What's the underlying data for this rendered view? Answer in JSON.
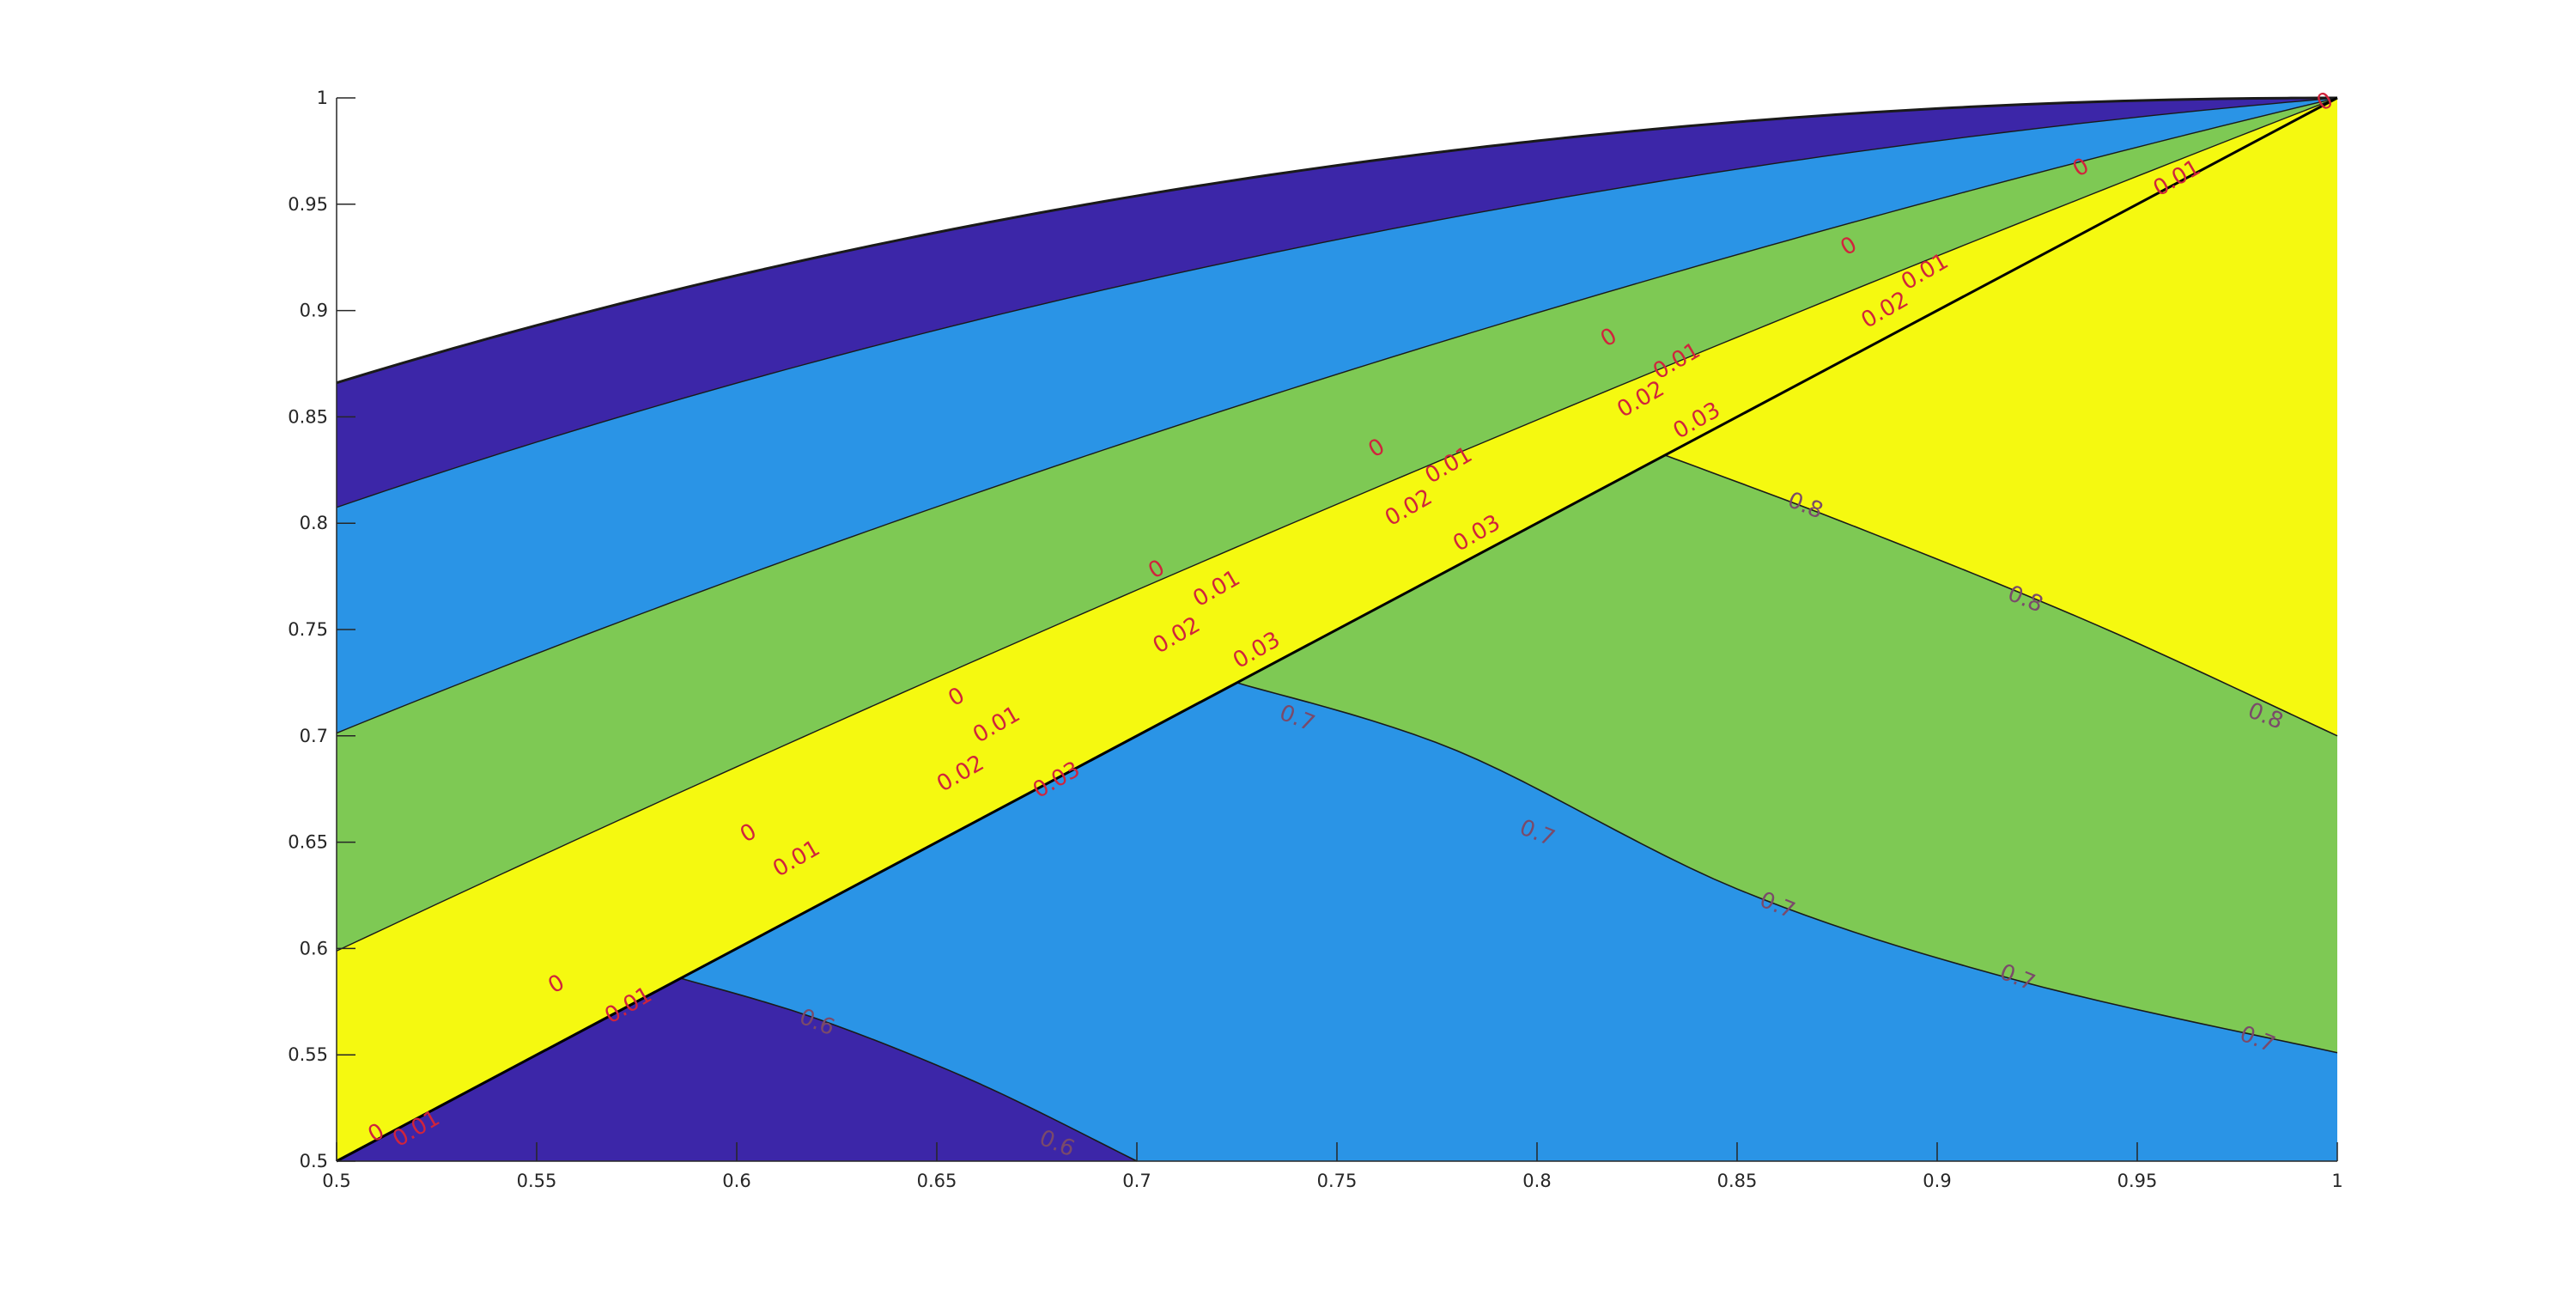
{
  "chart_data": {
    "type": "filled-contour",
    "title": "",
    "xlabel": "",
    "ylabel": "",
    "xlim": [
      0.5,
      1
    ],
    "ylim": [
      0.5,
      1
    ],
    "grid": false,
    "x_ticks": [
      0.5,
      0.55,
      0.6,
      0.65,
      0.7,
      0.75,
      0.8,
      0.85,
      0.9,
      0.95,
      1
    ],
    "y_ticks": [
      0.5,
      0.55,
      0.6,
      0.65,
      0.7,
      0.75,
      0.8,
      0.85,
      0.9,
      0.95,
      1
    ],
    "x_tick_labels": [
      "0.5",
      "0.55",
      "0.6",
      "0.65",
      "0.7",
      "0.75",
      "0.8",
      "0.85",
      "0.9",
      "0.95",
      "1"
    ],
    "y_tick_labels": [
      "0.5",
      "0.55",
      "0.6",
      "0.65",
      "0.7",
      "0.75",
      "0.8",
      "0.85",
      "0.9",
      "0.95",
      "1"
    ],
    "colors": {
      "dark_purple": "#3c26a8",
      "blue": "#2a94e6",
      "green": "#7ec954",
      "yellow": "#f5f910",
      "lower_labels": "#7a4a6a",
      "upper_labels": "#d0243c"
    },
    "lower_region": {
      "boundary": "y = x",
      "contours": [
        {
          "level": 0.6,
          "label": "0.6",
          "points": [
            [
              0.586,
              0.586
            ],
            [
              0.62,
              0.567
            ],
            [
              0.66,
              0.537
            ],
            [
              0.7,
              0.5
            ]
          ]
        },
        {
          "level": 0.7,
          "label": "0.7",
          "points": [
            [
              0.725,
              0.725
            ],
            [
              0.78,
              0.693
            ],
            [
              0.85,
              0.628
            ],
            [
              0.92,
              0.585
            ],
            [
              1.0,
              0.551
            ]
          ]
        },
        {
          "level": 0.8,
          "label": "0.8",
          "points": [
            [
              0.832,
              0.832
            ],
            [
              0.88,
              0.798
            ],
            [
              0.94,
              0.752
            ],
            [
              1.0,
              0.7
            ]
          ]
        }
      ],
      "labels": [
        {
          "text": "0.6",
          "x": 0.62,
          "y": 0.565
        },
        {
          "text": "0.6",
          "x": 0.68,
          "y": 0.508
        },
        {
          "text": "0.7",
          "x": 0.74,
          "y": 0.708
        },
        {
          "text": "0.7",
          "x": 0.8,
          "y": 0.654
        },
        {
          "text": "0.7",
          "x": 0.86,
          "y": 0.62
        },
        {
          "text": "0.7",
          "x": 0.92,
          "y": 0.586
        },
        {
          "text": "0.7",
          "x": 0.98,
          "y": 0.557
        },
        {
          "text": "0.8",
          "x": 0.867,
          "y": 0.808
        },
        {
          "text": "0.8",
          "x": 0.922,
          "y": 0.764
        },
        {
          "text": "0.8",
          "x": 0.982,
          "y": 0.709
        }
      ]
    },
    "upper_region": {
      "outer_boundary": "y = sqrt(x*(2-x)) approx",
      "levels": [
        0,
        0.01,
        0.02,
        0.03
      ],
      "labels": [
        {
          "text": "0",
          "x": 0.51,
          "y": 0.513
        },
        {
          "text": "0",
          "x": 0.555,
          "y": 0.583
        },
        {
          "text": "0",
          "x": 0.603,
          "y": 0.654
        },
        {
          "text": "0",
          "x": 0.655,
          "y": 0.718
        },
        {
          "text": "0",
          "x": 0.705,
          "y": 0.778
        },
        {
          "text": "0",
          "x": 0.76,
          "y": 0.835
        },
        {
          "text": "0",
          "x": 0.818,
          "y": 0.887
        },
        {
          "text": "0",
          "x": 0.878,
          "y": 0.93
        },
        {
          "text": "0",
          "x": 0.936,
          "y": 0.967
        },
        {
          "text": "0",
          "x": 0.997,
          "y": 0.998
        },
        {
          "text": "0.01",
          "x": 0.52,
          "y": 0.515
        },
        {
          "text": "0.01",
          "x": 0.573,
          "y": 0.573
        },
        {
          "text": "0.01",
          "x": 0.615,
          "y": 0.642
        },
        {
          "text": "0.01",
          "x": 0.665,
          "y": 0.705
        },
        {
          "text": "0.01",
          "x": 0.72,
          "y": 0.769
        },
        {
          "text": "0.01",
          "x": 0.778,
          "y": 0.827
        },
        {
          "text": "0.01",
          "x": 0.835,
          "y": 0.876
        },
        {
          "text": "0.01",
          "x": 0.897,
          "y": 0.918
        },
        {
          "text": "0.01",
          "x": 0.96,
          "y": 0.962
        },
        {
          "text": "0.02",
          "x": 0.656,
          "y": 0.682
        },
        {
          "text": "0.02",
          "x": 0.71,
          "y": 0.747
        },
        {
          "text": "0.02",
          "x": 0.768,
          "y": 0.807
        },
        {
          "text": "0.02",
          "x": 0.826,
          "y": 0.858
        },
        {
          "text": "0.02",
          "x": 0.887,
          "y": 0.9
        },
        {
          "text": "0.03",
          "x": 0.68,
          "y": 0.679
        },
        {
          "text": "0.03",
          "x": 0.73,
          "y": 0.74
        },
        {
          "text": "0.03",
          "x": 0.785,
          "y": 0.795
        },
        {
          "text": "0.03",
          "x": 0.84,
          "y": 0.848
        }
      ]
    }
  }
}
